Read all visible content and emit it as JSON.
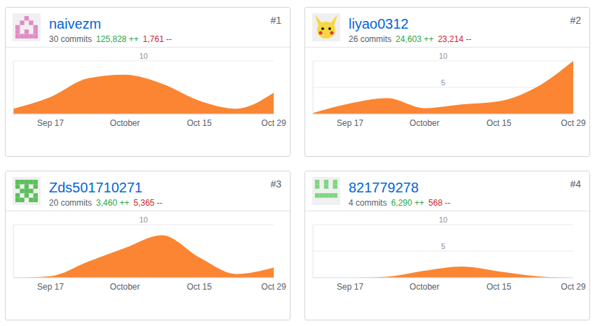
{
  "chart_data": [
    {
      "type": "area",
      "title": "naivezm",
      "subtitle": "30 commits",
      "annotations": [
        "125,828 ++",
        "1,761 --",
        "#1"
      ],
      "categories": [
        null,
        "Sep 17",
        null,
        "October",
        null,
        "Oct 15",
        null,
        "Oct 29"
      ],
      "values": [
        1,
        3.2,
        6.7,
        7.4,
        5.7,
        2.5,
        1,
        4
      ],
      "color": "#fb8532",
      "ylim": [
        0,
        10
      ],
      "yticks": [
        10
      ],
      "grid": true
    },
    {
      "type": "area",
      "title": "liyao0312",
      "subtitle": "26 commits",
      "annotations": [
        "24,603 ++",
        "23,214 --",
        "#2"
      ],
      "categories": [
        null,
        "Sep 17",
        null,
        "October",
        null,
        "Oct 15",
        null,
        "Oct 29"
      ],
      "values": [
        0.2,
        2,
        3,
        1.1,
        1.8,
        2.4,
        5,
        10
      ],
      "color": "#fb8532",
      "ylim": [
        0,
        10
      ],
      "yticks": [
        5,
        10
      ],
      "grid": true
    },
    {
      "type": "area",
      "title": "Zds501710271",
      "subtitle": "20 commits",
      "annotations": [
        "3,460 ++",
        "5,365 --",
        "#3"
      ],
      "categories": [
        null,
        "Sep 17",
        null,
        "October",
        null,
        "Oct 15",
        null,
        "Oct 29"
      ],
      "values": [
        0,
        0.3,
        3,
        5.6,
        8,
        3.8,
        0.7,
        1.9
      ],
      "color": "#fb8532",
      "ylim": [
        0,
        10
      ],
      "yticks": [
        10
      ],
      "grid": true
    },
    {
      "type": "area",
      "title": "821779278",
      "subtitle": "4 commits",
      "annotations": [
        "6,290 ++",
        "568 --",
        "#4"
      ],
      "categories": [
        null,
        "Sep 17",
        null,
        "October",
        null,
        "Oct 15",
        null,
        "Oct 29"
      ],
      "values": [
        0,
        0,
        0.2,
        1.3,
        2.1,
        1.2,
        0.3,
        0
      ],
      "color": "#fb8532",
      "ylim": [
        0,
        10
      ],
      "yticks": [
        5,
        10
      ],
      "grid": true
    }
  ]
}
